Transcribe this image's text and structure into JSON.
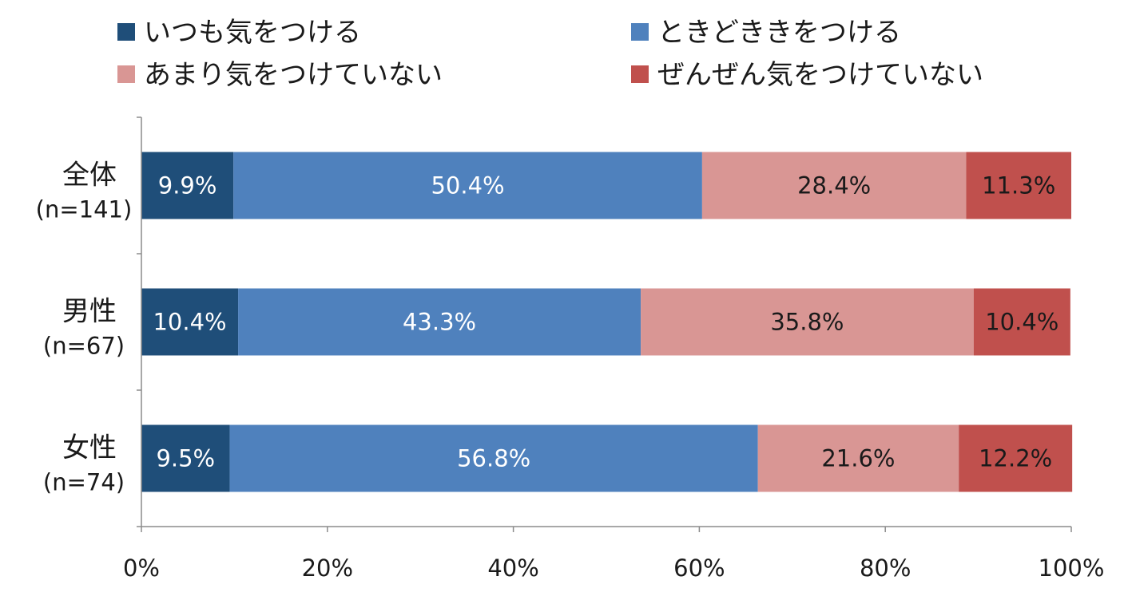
{
  "chart_data": {
    "type": "bar",
    "orientation": "horizontal",
    "stacked": true,
    "categories": [
      {
        "name": "全体",
        "n": "(n=141)"
      },
      {
        "name": "男性",
        "n": "(n=67)"
      },
      {
        "name": "女性",
        "n": "(n=74)"
      }
    ],
    "series": [
      {
        "name": "いつも気をつける",
        "color": "#1f4e79",
        "label_color": "#ffffff",
        "values": [
          9.9,
          10.4,
          9.5
        ],
        "labels": [
          "9.9%",
          "10.4%",
          "9.5%"
        ]
      },
      {
        "name": "ときどききをつける",
        "color": "#4f81bd",
        "label_color": "#ffffff",
        "values": [
          50.4,
          43.3,
          56.8
        ],
        "labels": [
          "50.4%",
          "43.3%",
          "56.8%"
        ]
      },
      {
        "name": "あまり気をつけていない",
        "color": "#d99694",
        "label_color": "#1a1a1a",
        "values": [
          28.4,
          35.8,
          21.6
        ],
        "labels": [
          "28.4%",
          "35.8%",
          "21.6%"
        ]
      },
      {
        "name": "ぜんぜん気をつけていない",
        "color": "#c0504d",
        "label_color": "#1a1a1a",
        "values": [
          11.3,
          10.4,
          12.2
        ],
        "labels": [
          "11.3%",
          "10.4%",
          "12.2%"
        ]
      }
    ],
    "xlim": [
      0,
      100
    ],
    "xticks": [
      0,
      20,
      40,
      60,
      80,
      100
    ],
    "xtick_labels": [
      "0%",
      "20%",
      "40%",
      "60%",
      "80%",
      "100%"
    ],
    "grid": false,
    "legend_position": "top"
  }
}
